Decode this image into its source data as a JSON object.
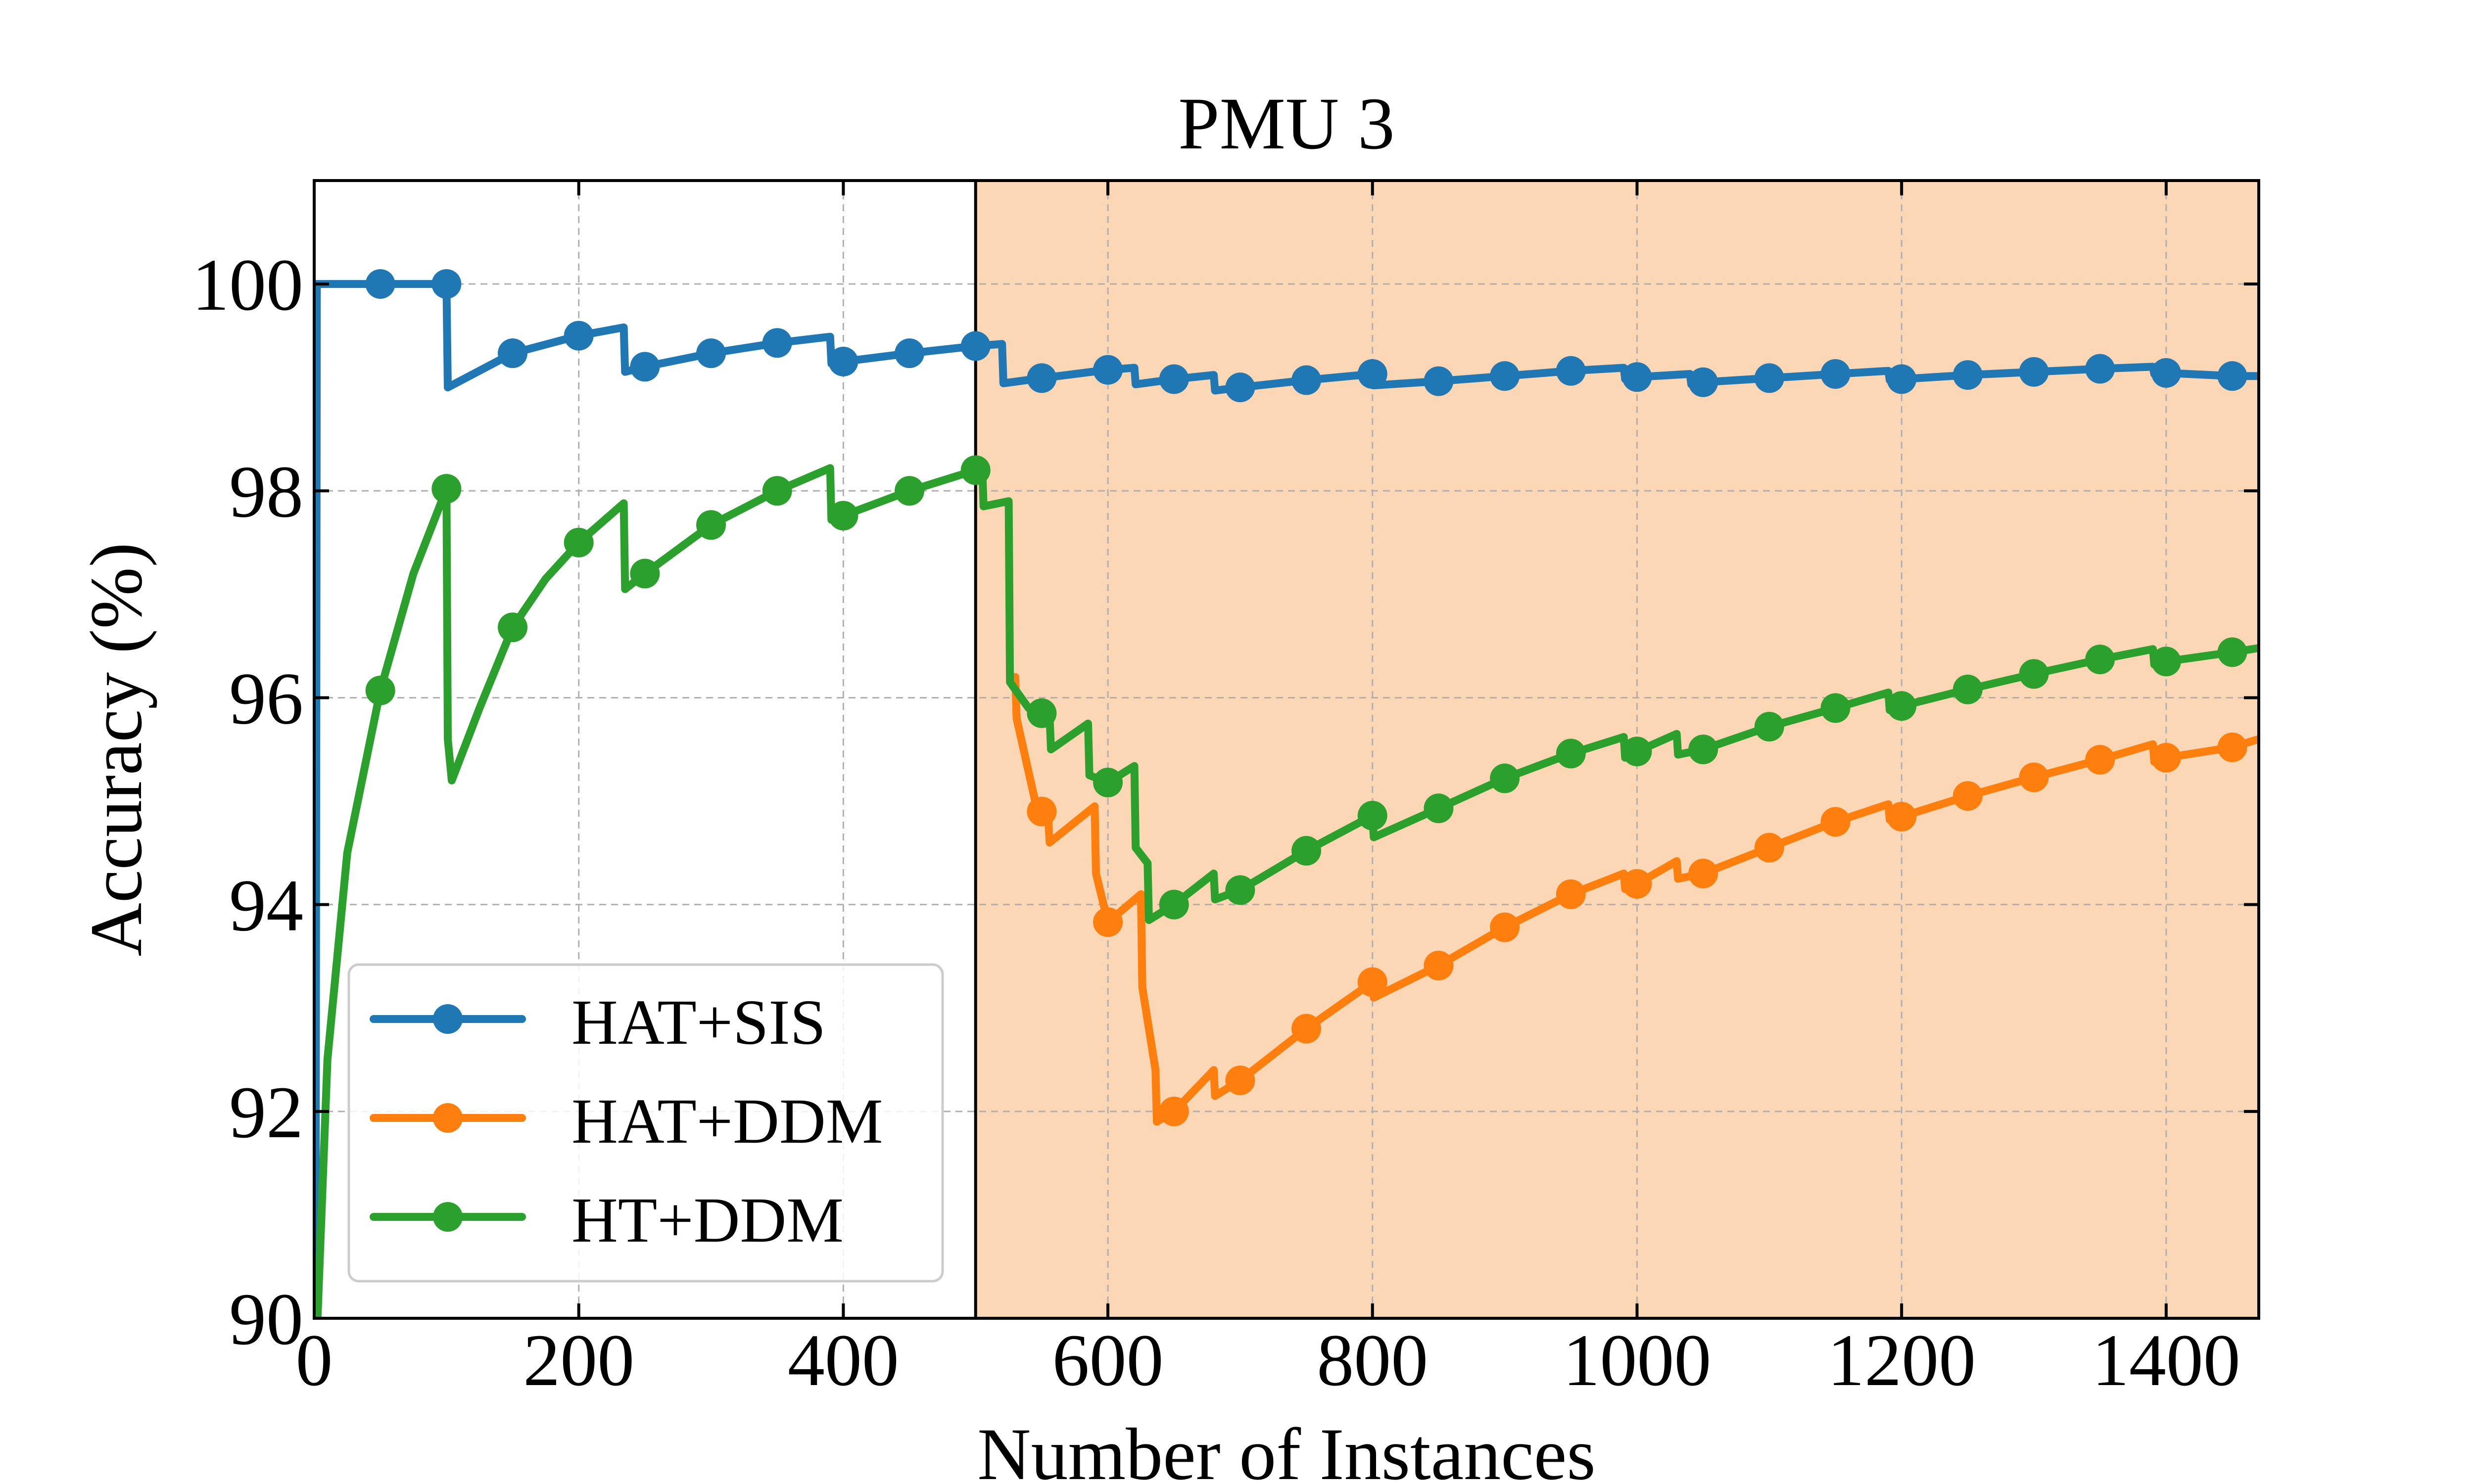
{
  "chart_data": {
    "type": "line",
    "title": "PMU 3",
    "xlabel": "Number of Instances",
    "ylabel": "Accuracy (%)",
    "xlim": [
      0,
      1470
    ],
    "ylim": [
      90,
      101
    ],
    "xticks": [
      0,
      200,
      400,
      600,
      800,
      1000,
      1200,
      1400
    ],
    "yticks": [
      90,
      92,
      94,
      96,
      98,
      100
    ],
    "xtick_labels": [
      "0",
      "200",
      "400",
      "600",
      "800",
      "1000",
      "1200",
      "1400"
    ],
    "ytick_labels": [
      "90",
      "92",
      "94",
      "96",
      "98",
      "100"
    ],
    "grid": true,
    "legend_position": "lower-left",
    "shaded_region": {
      "x_start": 500,
      "x_end": 1470,
      "color": "#fcd7b5"
    },
    "vertical_line_x": 500,
    "series": [
      {
        "name": "HAT+SIS",
        "color": "#1f77b4",
        "x": [
          1,
          2,
          50,
          100,
          101,
          150,
          200,
          234,
          235,
          250,
          300,
          350,
          390,
          391,
          400,
          450,
          500,
          520,
          521,
          550,
          600,
          620,
          621,
          650,
          680,
          681,
          700,
          750,
          800,
          801,
          850,
          900,
          950,
          990,
          991,
          1000,
          1040,
          1041,
          1050,
          1100,
          1150,
          1190,
          1191,
          1200,
          1250,
          1300,
          1350,
          1390,
          1391,
          1400,
          1450,
          1470
        ],
        "y": [
          90,
          100,
          100,
          100,
          99.0,
          99.33,
          99.5,
          99.58,
          99.15,
          99.2,
          99.33,
          99.43,
          99.49,
          99.23,
          99.25,
          99.33,
          99.4,
          99.42,
          99.04,
          99.09,
          99.17,
          99.19,
          99.03,
          99.08,
          99.12,
          98.97,
          99.0,
          99.07,
          99.13,
          99.02,
          99.06,
          99.11,
          99.16,
          99.19,
          99.08,
          99.1,
          99.13,
          99.03,
          99.05,
          99.09,
          99.13,
          99.16,
          99.07,
          99.08,
          99.12,
          99.15,
          99.18,
          99.2,
          99.13,
          99.14,
          99.11,
          99.11
        ],
        "markers_x": [
          50,
          100,
          150,
          200,
          250,
          300,
          350,
          400,
          450,
          500,
          550,
          600,
          650,
          700,
          750,
          800,
          850,
          900,
          950,
          1000,
          1050,
          1100,
          1150,
          1200,
          1250,
          1300,
          1350,
          1400,
          1450
        ],
        "markers_y": [
          100,
          100,
          99.33,
          99.5,
          99.2,
          99.33,
          99.43,
          99.25,
          99.33,
          99.4,
          99.09,
          99.17,
          99.08,
          99.0,
          99.07,
          99.13,
          99.06,
          99.11,
          99.16,
          99.1,
          99.05,
          99.09,
          99.13,
          99.08,
          99.12,
          99.15,
          99.18,
          99.14,
          99.11
        ]
      },
      {
        "name": "HAT+DDM",
        "color": "#ff7f0e",
        "x": [
          530,
          531,
          545,
          550,
          555,
          556,
          590,
          591,
          600,
          625,
          626,
          636,
          637,
          650,
          680,
          681,
          700,
          750,
          800,
          801,
          850,
          900,
          950,
          990,
          991,
          1000,
          1030,
          1031,
          1050,
          1100,
          1150,
          1190,
          1191,
          1200,
          1250,
          1300,
          1350,
          1390,
          1391,
          1400,
          1450,
          1470
        ],
        "y": [
          96.2,
          95.8,
          95.0,
          94.9,
          94.8,
          94.6,
          94.95,
          94.3,
          93.83,
          94.1,
          93.2,
          92.4,
          91.9,
          92.0,
          92.4,
          92.15,
          92.3,
          92.8,
          93.25,
          93.1,
          93.41,
          93.78,
          94.1,
          94.3,
          94.15,
          94.2,
          94.42,
          94.25,
          94.3,
          94.55,
          94.8,
          94.97,
          94.82,
          94.85,
          95.05,
          95.23,
          95.4,
          95.55,
          95.38,
          95.42,
          95.52,
          95.6
        ],
        "markers_x": [
          550,
          600,
          650,
          700,
          750,
          800,
          850,
          900,
          950,
          1000,
          1050,
          1100,
          1150,
          1200,
          1250,
          1300,
          1350,
          1400,
          1450
        ],
        "markers_y": [
          94.9,
          93.83,
          92.0,
          92.3,
          92.8,
          93.25,
          93.41,
          93.78,
          94.1,
          94.2,
          94.3,
          94.55,
          94.8,
          94.85,
          95.05,
          95.23,
          95.4,
          95.42,
          95.52
        ]
      },
      {
        "name": "HT+DDM",
        "color": "#2ca02c",
        "x": [
          1,
          10,
          25,
          50,
          75,
          100,
          101,
          104,
          125,
          150,
          175,
          200,
          234,
          235,
          250,
          300,
          350,
          390,
          391,
          400,
          450,
          500,
          505,
          506,
          525,
          526,
          540,
          550,
          556,
          557,
          585,
          586,
          600,
          620,
          621,
          630,
          631,
          650,
          680,
          681,
          700,
          750,
          800,
          801,
          850,
          900,
          950,
          990,
          991,
          1000,
          1030,
          1031,
          1050,
          1100,
          1150,
          1190,
          1191,
          1200,
          1250,
          1300,
          1350,
          1390,
          1391,
          1400,
          1450,
          1470
        ],
        "y": [
          89.5,
          92.5,
          94.5,
          96.07,
          97.2,
          98.02,
          95.6,
          95.2,
          95.9,
          96.68,
          97.15,
          97.5,
          97.88,
          97.05,
          97.2,
          97.67,
          98.0,
          98.22,
          97.72,
          97.76,
          98.0,
          98.2,
          98.22,
          97.85,
          97.9,
          96.15,
          95.9,
          95.85,
          95.8,
          95.5,
          95.75,
          95.25,
          95.18,
          95.34,
          94.55,
          94.4,
          93.85,
          94.0,
          94.3,
          94.05,
          94.14,
          94.52,
          94.86,
          94.65,
          94.93,
          95.22,
          95.46,
          95.62,
          95.42,
          95.48,
          95.65,
          95.45,
          95.5,
          95.72,
          95.9,
          96.05,
          95.88,
          95.92,
          96.08,
          96.23,
          96.37,
          96.47,
          96.32,
          96.35,
          96.44,
          96.48
        ],
        "markers_x": [
          50,
          100,
          150,
          200,
          250,
          300,
          350,
          400,
          450,
          500,
          550,
          600,
          650,
          700,
          750,
          800,
          850,
          900,
          950,
          1000,
          1050,
          1100,
          1150,
          1200,
          1250,
          1300,
          1350,
          1400,
          1450
        ],
        "markers_y": [
          96.07,
          98.02,
          96.68,
          97.5,
          97.2,
          97.67,
          98.0,
          97.76,
          98.0,
          98.2,
          95.85,
          95.18,
          94.0,
          94.14,
          94.52,
          94.86,
          94.93,
          95.22,
          95.46,
          95.48,
          95.5,
          95.72,
          95.9,
          95.92,
          96.08,
          96.23,
          96.37,
          96.35,
          96.44
        ]
      }
    ]
  }
}
